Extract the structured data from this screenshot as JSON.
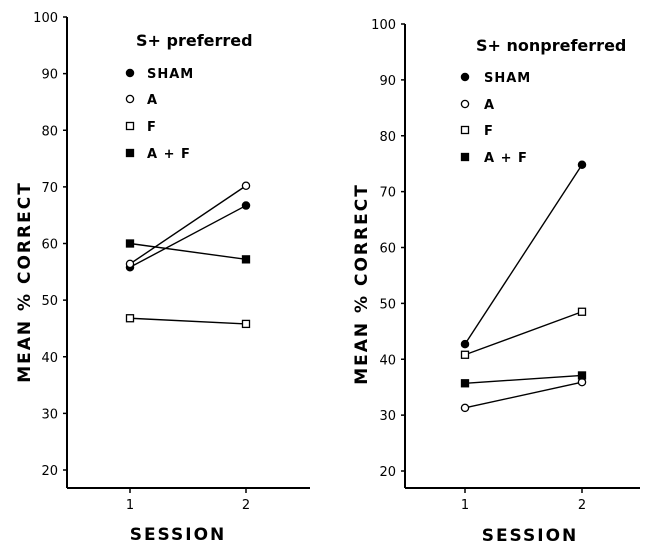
{
  "chart_data": [
    {
      "type": "line",
      "title": "S+ preferred",
      "xlabel": "SESSION",
      "ylabel": "MEAN % CORRECT",
      "categories": [
        "1",
        "2"
      ],
      "ylim": [
        17,
        100
      ],
      "yticks": [
        20,
        30,
        40,
        50,
        60,
        70,
        80,
        90,
        100
      ],
      "grid": false,
      "legend_position": "top",
      "series": [
        {
          "name": "SHAM",
          "marker": "filled-circle",
          "values": [
            55.8,
            66.7
          ]
        },
        {
          "name": "A",
          "marker": "open-circle",
          "values": [
            56.4,
            70.2
          ]
        },
        {
          "name": "F",
          "marker": "open-square",
          "values": [
            46.8,
            45.8
          ]
        },
        {
          "name": "A + F",
          "marker": "filled-square",
          "values": [
            60.0,
            57.2
          ]
        }
      ]
    },
    {
      "type": "line",
      "title": "S+ nonpreferred",
      "xlabel": "SESSION",
      "ylabel": "MEAN % CORRECT",
      "categories": [
        "1",
        "2"
      ],
      "ylim": [
        17,
        100
      ],
      "yticks": [
        20,
        30,
        40,
        50,
        60,
        70,
        80,
        90,
        100
      ],
      "grid": false,
      "legend_position": "top",
      "series": [
        {
          "name": "SHAM",
          "marker": "filled-circle",
          "values": [
            42.7,
            74.8
          ]
        },
        {
          "name": "A",
          "marker": "open-circle",
          "values": [
            31.3,
            35.9
          ]
        },
        {
          "name": "F",
          "marker": "open-square",
          "values": [
            40.8,
            48.5
          ]
        },
        {
          "name": "A + F",
          "marker": "filled-square",
          "values": [
            35.7,
            37.1
          ]
        }
      ]
    }
  ],
  "colors": {
    "ink": "#000000",
    "background": "#ffffff"
  }
}
